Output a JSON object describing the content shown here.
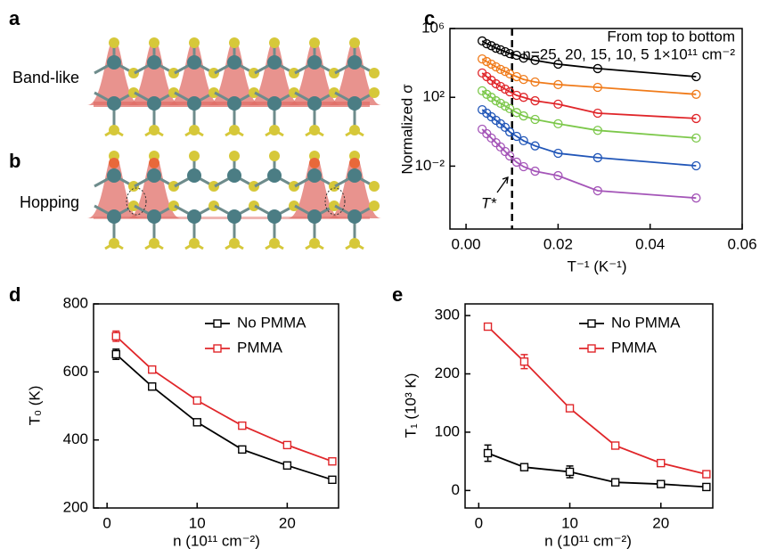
{
  "diagrams": [
    {
      "label": "a",
      "caption": "Band-like"
    },
    {
      "label": "b",
      "caption": "Hopping"
    }
  ],
  "chart_data": [
    {
      "type": "scatter",
      "label": "c",
      "xlabel": "T⁻¹ (K⁻¹)",
      "ylabel": "Normalized σ",
      "yscale": "log",
      "xlim": [
        -0.0035,
        0.06
      ],
      "ylim": [
        2.2e-06,
        1000000
      ],
      "xticks": [
        {
          "value": 0,
          "label": "0.00"
        },
        {
          "value": 0.02,
          "label": "0.02"
        },
        {
          "value": 0.04,
          "label": "0.04"
        },
        {
          "value": 0.06,
          "label": "0.06"
        }
      ],
      "yticks": [
        {
          "value": 1000000,
          "label": "10⁶"
        },
        {
          "value": 100,
          "label": "10²"
        },
        {
          "value": 0.01,
          "label": "10⁻²"
        }
      ],
      "x": [
        0.0035,
        0.0045,
        0.0055,
        0.0065,
        0.0075,
        0.0085,
        0.0095,
        0.011,
        0.0125,
        0.015,
        0.02,
        0.0286,
        0.05
      ],
      "series": [
        {
          "color": "#000000",
          "values": [
            190000,
            130000,
            100000,
            72000,
            58000,
            45000,
            35000,
            28000,
            19000,
            14000,
            8500,
            4700,
            1600
          ]
        },
        {
          "color": "#f07b1a",
          "values": [
            17000,
            12000,
            8500,
            5900,
            4200,
            3200,
            2300,
            1600,
            1100,
            780,
            550,
            380,
            150
          ]
        },
        {
          "color": "#e0262a",
          "values": [
            2600,
            1600,
            980,
            610,
            430,
            300,
            210,
            130,
            100,
            63,
            40,
            12,
            5.9
          ]
        },
        {
          "color": "#7cc84a",
          "values": [
            240,
            150,
            100,
            63,
            45,
            31,
            22,
            13,
            8.3,
            5.2,
            2.9,
            1.2,
            0.43
          ]
        },
        {
          "color": "#2156b8",
          "values": [
            19,
            12,
            7.4,
            4.6,
            2.9,
            1.8,
            0.97,
            0.54,
            0.3,
            0.15,
            0.056,
            0.031,
            0.0105
          ]
        },
        {
          "color": "#a455b8",
          "values": [
            1.4,
            0.77,
            0.43,
            0.23,
            0.13,
            0.071,
            0.039,
            0.017,
            0.0093,
            0.0051,
            0.0028,
            0.00037,
            0.00014
          ]
        }
      ],
      "vline": 0.01,
      "annotations": [
        "From top to bottom",
        "n=25, 20, 15, 10, 5 1×10¹¹ cm⁻²",
        "T*"
      ]
    },
    {
      "type": "line",
      "label": "d",
      "xlabel": "n (10¹¹ cm⁻²)",
      "ylabel": "T₀ (K)",
      "xlim": [
        -1.5,
        25.7
      ],
      "ylim": [
        200,
        800
      ],
      "xticks": [
        0,
        10,
        20
      ],
      "yticks": [
        200,
        400,
        600,
        800
      ],
      "legend": "upper right",
      "x": [
        1,
        5,
        10,
        15,
        20,
        25
      ],
      "series": [
        {
          "name": "No PMMA",
          "color": "#000000",
          "values": [
            652,
            557,
            452,
            372,
            325,
            283
          ],
          "errors": [
            15,
            10,
            8,
            5,
            5,
            5
          ]
        },
        {
          "name": "PMMA",
          "color": "#e0262a",
          "values": [
            705,
            607,
            516,
            442,
            385,
            337
          ],
          "errors": [
            15,
            10,
            8,
            6,
            5,
            4
          ]
        }
      ]
    },
    {
      "type": "line",
      "label": "e",
      "xlabel": "n (10¹¹ cm⁻²)",
      "ylabel": "T₁ (10³ K)",
      "xlim": [
        -1.5,
        25.7
      ],
      "ylim": [
        -30,
        320
      ],
      "xticks": [
        0,
        10,
        20
      ],
      "yticks": [
        0,
        100,
        200,
        300
      ],
      "legend": "upper right",
      "x": [
        1,
        5,
        10,
        15,
        20,
        25
      ],
      "series": [
        {
          "name": "No PMMA",
          "color": "#000000",
          "values": [
            64,
            40,
            32,
            14,
            11,
            6
          ],
          "errors": [
            14,
            4,
            10,
            3,
            3,
            3
          ]
        },
        {
          "name": "PMMA",
          "color": "#e0262a",
          "values": [
            281,
            221,
            141,
            77,
            47,
            28
          ],
          "errors": [
            3,
            12,
            3,
            4,
            3,
            4
          ]
        }
      ]
    }
  ]
}
